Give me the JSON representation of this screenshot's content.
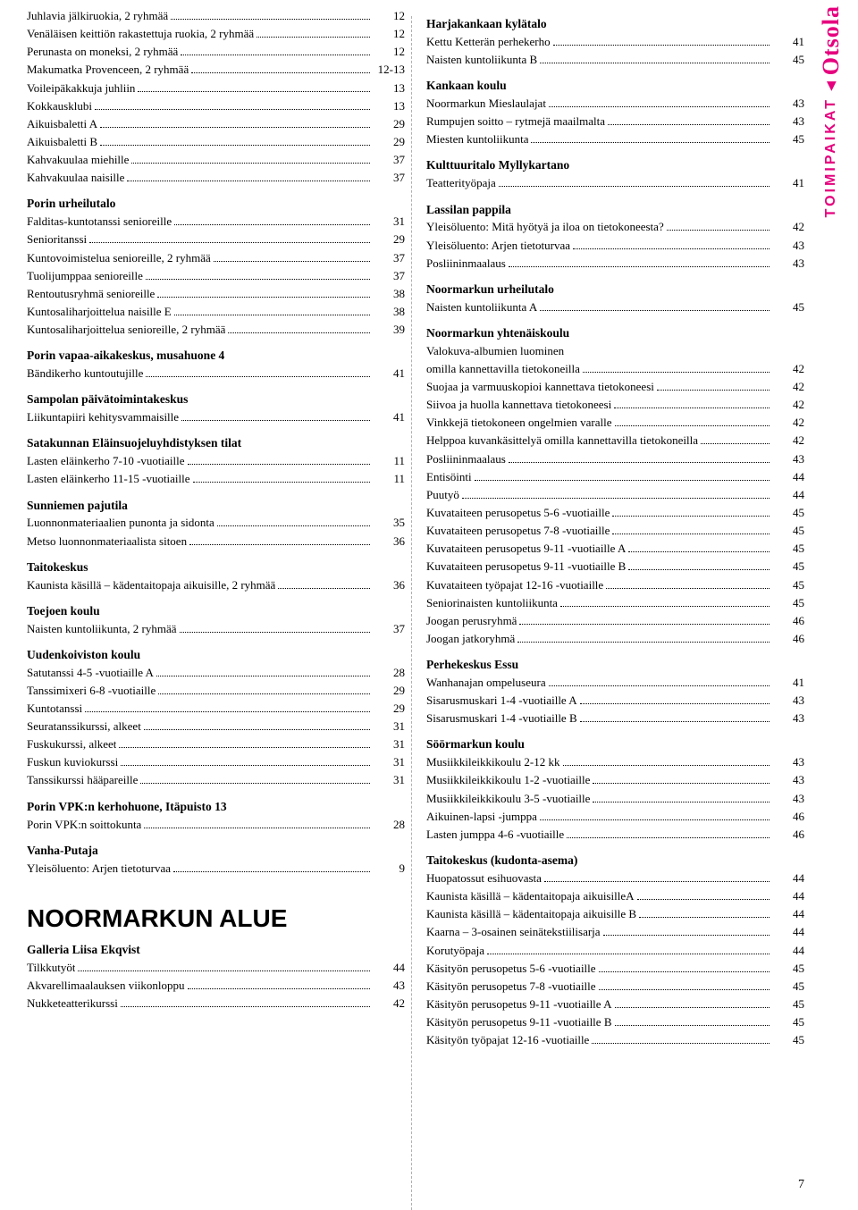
{
  "side": {
    "brand": "Otsola",
    "label": "TOIMIPAIKAT"
  },
  "pageNumber": "7",
  "left": [
    {
      "type": "entry",
      "label": "Juhlavia jälkiruokia, 2 ryhmää",
      "pg": "12"
    },
    {
      "type": "entry",
      "label": "Venäläisen keittiön rakastettuja ruokia, 2 ryhmää",
      "pg": "12"
    },
    {
      "type": "entry",
      "label": "Perunasta on moneksi, 2 ryhmää",
      "pg": "12"
    },
    {
      "type": "entry",
      "label": "Makumatka Provenceen, 2 ryhmää",
      "pg": "12-13"
    },
    {
      "type": "entry",
      "label": "Voileipäkakkuja juhliin",
      "pg": "13"
    },
    {
      "type": "entry",
      "label": "Kokkausklubi",
      "pg": "13"
    },
    {
      "type": "entry",
      "label": "Aikuisbaletti A",
      "pg": "29"
    },
    {
      "type": "entry",
      "label": "Aikuisbaletti B",
      "pg": "29"
    },
    {
      "type": "entry",
      "label": "Kahvakuulaa miehille",
      "pg": "37"
    },
    {
      "type": "entry",
      "label": "Kahvakuulaa naisille",
      "pg": "37"
    },
    {
      "type": "heading",
      "label": "Porin urheilutalo"
    },
    {
      "type": "entry",
      "label": "Falditas-kuntotanssi senioreille",
      "pg": "31"
    },
    {
      "type": "entry",
      "label": "Senioritanssi",
      "pg": "29"
    },
    {
      "type": "entry",
      "label": "Kuntovoimistelua senioreille, 2 ryhmää",
      "pg": "37"
    },
    {
      "type": "entry",
      "label": "Tuolijumppaa senioreille",
      "pg": "37"
    },
    {
      "type": "entry",
      "label": "Rentoutusryhmä senioreille",
      "pg": "38"
    },
    {
      "type": "entry",
      "label": "Kuntosaliharjoittelua naisille E",
      "pg": "38"
    },
    {
      "type": "entry",
      "label": "Kuntosaliharjoittelua senioreille, 2 ryhmää",
      "pg": "39"
    },
    {
      "type": "heading",
      "label": "Porin vapaa-aikakeskus, musahuone 4"
    },
    {
      "type": "entry",
      "label": "Bändikerho kuntoutujille",
      "pg": "41"
    },
    {
      "type": "heading",
      "label": "Sampolan päivätoimintakeskus"
    },
    {
      "type": "entry",
      "label": "Liikuntapiiri kehitysvammaisille",
      "pg": "41"
    },
    {
      "type": "heading",
      "label": "Satakunnan Eläinsuojeluyhdistyksen tilat"
    },
    {
      "type": "entry",
      "label": "Lasten eläinkerho 7-10 -vuotiaille",
      "pg": "11"
    },
    {
      "type": "entry",
      "label": "Lasten eläinkerho 11-15 -vuotiaille",
      "pg": "11"
    },
    {
      "type": "heading",
      "label": "Sunniemen pajutila"
    },
    {
      "type": "entry",
      "label": "Luonnonmateriaalien punonta ja sidonta",
      "pg": "35"
    },
    {
      "type": "entry",
      "label": "Metso luonnonmateriaalista sitoen",
      "pg": "36"
    },
    {
      "type": "heading",
      "label": "Taitokeskus"
    },
    {
      "type": "entry",
      "label": "Kaunista käsillä – kädentaitopaja aikuisille, 2 ryhmää",
      "pg": "36"
    },
    {
      "type": "heading",
      "label": "Toejoen koulu"
    },
    {
      "type": "entry",
      "label": "Naisten kuntoliikunta, 2 ryhmää",
      "pg": "37"
    },
    {
      "type": "heading",
      "label": "Uudenkoiviston koulu"
    },
    {
      "type": "entry",
      "label": "Satutanssi 4-5 -vuotiaille A",
      "pg": "28"
    },
    {
      "type": "entry",
      "label": "Tanssimixeri 6-8 -vuotiaille",
      "pg": "29"
    },
    {
      "type": "entry",
      "label": "Kuntotanssi",
      "pg": "29"
    },
    {
      "type": "entry",
      "label": "Seuratanssikurssi, alkeet",
      "pg": "31"
    },
    {
      "type": "entry",
      "label": "Fuskukurssi, alkeet",
      "pg": "31"
    },
    {
      "type": "entry",
      "label": "Fuskun kuviokurssi",
      "pg": "31"
    },
    {
      "type": "entry",
      "label": "Tanssikurssi hääpareille",
      "pg": "31"
    },
    {
      "type": "heading",
      "label": "Porin VPK:n kerhohuone, Itäpuisto 13"
    },
    {
      "type": "entry",
      "label": "Porin VPK:n soittokunta",
      "pg": "28"
    },
    {
      "type": "heading",
      "label": "Vanha-Putaja"
    },
    {
      "type": "entry",
      "label": "Yleisöluento: Arjen tietoturvaa",
      "pg": "9"
    },
    {
      "type": "big",
      "label": "NOORMARKUN ALUE"
    },
    {
      "type": "heading",
      "label": "Galleria Liisa Ekqvist"
    },
    {
      "type": "entry",
      "label": "Tilkkutyöt",
      "pg": "44"
    },
    {
      "type": "entry",
      "label": "Akvarellimaalauksen viikonloppu",
      "pg": "43"
    },
    {
      "type": "entry",
      "label": "Nukketeatterikurssi",
      "pg": "42"
    }
  ],
  "right": [
    {
      "type": "heading",
      "label": "Harjakankaan kylätalo"
    },
    {
      "type": "entry",
      "label": "Kettu Ketterän perhekerho",
      "pg": "41"
    },
    {
      "type": "entry",
      "label": "Naisten kuntoliikunta B",
      "pg": "45"
    },
    {
      "type": "heading",
      "label": "Kankaan koulu"
    },
    {
      "type": "entry",
      "label": "Noormarkun Mieslaulajat",
      "pg": "43"
    },
    {
      "type": "entry",
      "label": "Rumpujen soitto – rytmejä maailmalta",
      "pg": "43"
    },
    {
      "type": "entry",
      "label": "Miesten kuntoliikunta",
      "pg": "45"
    },
    {
      "type": "heading",
      "label": "Kulttuuritalo Myllykartano"
    },
    {
      "type": "entry",
      "label": "Teatterityöpaja",
      "pg": "41"
    },
    {
      "type": "heading",
      "label": "Lassilan pappila"
    },
    {
      "type": "entry",
      "label": "Yleisöluento: Mitä hyötyä ja iloa on tietokoneesta?",
      "pg": "42"
    },
    {
      "type": "entry",
      "label": "Yleisöluento: Arjen tietoturvaa",
      "pg": "43"
    },
    {
      "type": "entry",
      "label": "Posliininmaalaus",
      "pg": "43"
    },
    {
      "type": "heading",
      "label": "Noormarkun urheilutalo"
    },
    {
      "type": "entry",
      "label": "Naisten kuntoliikunta A",
      "pg": "45"
    },
    {
      "type": "heading",
      "label": "Noormarkun yhtenäiskoulu"
    },
    {
      "type": "entry",
      "label": "Valokuva-albumien luominen omilla kannettavilla tietokoneilla",
      "pg": "42",
      "wrap": true
    },
    {
      "type": "entry",
      "label": "Suojaa ja varmuuskopioi kannettava tietokoneesi",
      "pg": "42"
    },
    {
      "type": "entry",
      "label": "Siivoa ja huolla kannettava tietokoneesi",
      "pg": "42"
    },
    {
      "type": "entry",
      "label": "Vinkkejä tietokoneen ongelmien varalle",
      "pg": "42"
    },
    {
      "type": "entry",
      "label": "Helppoa kuvankäsittelyä omilla kannettavilla tietokoneilla",
      "pg": "42"
    },
    {
      "type": "entry",
      "label": "Posliininmaalaus",
      "pg": "43"
    },
    {
      "type": "entry",
      "label": "Entisöinti",
      "pg": "44"
    },
    {
      "type": "entry",
      "label": "Puutyö",
      "pg": "44"
    },
    {
      "type": "entry",
      "label": "Kuvataiteen perusopetus 5-6 -vuotiaille",
      "pg": "45"
    },
    {
      "type": "entry",
      "label": "Kuvataiteen perusopetus 7-8 -vuotiaille",
      "pg": "45"
    },
    {
      "type": "entry",
      "label": "Kuvataiteen perusopetus 9-11 -vuotiaille A",
      "pg": "45"
    },
    {
      "type": "entry",
      "label": "Kuvataiteen perusopetus 9-11 -vuotiaille B",
      "pg": "45"
    },
    {
      "type": "entry",
      "label": "Kuvataiteen työpajat 12-16 -vuotiaille",
      "pg": "45"
    },
    {
      "type": "entry",
      "label": "Seniorinaisten kuntoliikunta",
      "pg": "45"
    },
    {
      "type": "entry",
      "label": "Joogan perusryhmä",
      "pg": "46"
    },
    {
      "type": "entry",
      "label": "Joogan jatkoryhmä",
      "pg": "46"
    },
    {
      "type": "heading",
      "label": "Perhekeskus Essu"
    },
    {
      "type": "entry",
      "label": "Wanhanajan ompeluseura",
      "pg": "41"
    },
    {
      "type": "entry",
      "label": "Sisarusmuskari 1-4 -vuotiaille A",
      "pg": "43"
    },
    {
      "type": "entry",
      "label": "Sisarusmuskari 1-4 -vuotiaille B",
      "pg": "43"
    },
    {
      "type": "heading",
      "label": "Söörmarkun koulu"
    },
    {
      "type": "entry",
      "label": "Musiikkileikkikoulu 2-12 kk",
      "pg": "43"
    },
    {
      "type": "entry",
      "label": "Musiikkileikkikoulu 1-2 -vuotiaille",
      "pg": "43"
    },
    {
      "type": "entry",
      "label": "Musiikkileikkikoulu 3-5 -vuotiaille",
      "pg": "43"
    },
    {
      "type": "entry",
      "label": "Aikuinen-lapsi -jumppa",
      "pg": "46"
    },
    {
      "type": "entry",
      "label": "Lasten jumppa 4-6 -vuotiaille",
      "pg": "46"
    },
    {
      "type": "heading",
      "label": "Taitokeskus (kudonta-asema)"
    },
    {
      "type": "entry",
      "label": "Huopatossut esihuovasta",
      "pg": "44"
    },
    {
      "type": "entry",
      "label": "Kaunista käsillä – kädentaitopaja aikuisilleA",
      "pg": "44"
    },
    {
      "type": "entry",
      "label": "Kaunista käsillä – kädentaitopaja aikuisille B",
      "pg": "44"
    },
    {
      "type": "entry",
      "label": "Kaarna – 3-osainen seinätekstiilisarja",
      "pg": "44"
    },
    {
      "type": "entry",
      "label": "Korutyöpaja",
      "pg": "44"
    },
    {
      "type": "entry",
      "label": "Käsityön perusopetus 5-6 -vuotiaille",
      "pg": "45"
    },
    {
      "type": "entry",
      "label": "Käsityön perusopetus 7-8 -vuotiaille",
      "pg": "45"
    },
    {
      "type": "entry",
      "label": "Käsityön perusopetus 9-11 -vuotiaille A",
      "pg": "45"
    },
    {
      "type": "entry",
      "label": "Käsityön perusopetus 9-11 -vuotiaille B",
      "pg": "45"
    },
    {
      "type": "entry",
      "label": "Käsityön työpajat 12-16 -vuotiaille",
      "pg": "45"
    }
  ]
}
